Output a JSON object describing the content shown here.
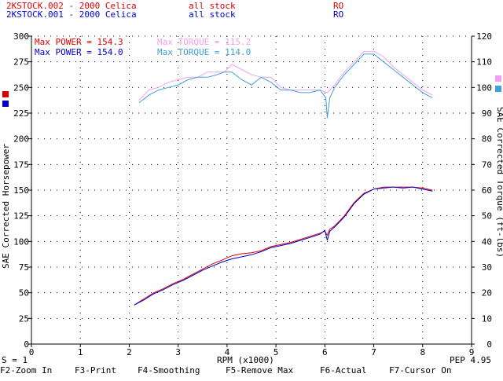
{
  "header": {
    "runs": [
      {
        "file": "2KSTOCK.002 - 2000 Celica",
        "notes": "all stock",
        "code": "RO",
        "color": "#e00000"
      },
      {
        "file": "2KSTOCK.001 - 2000 Celica",
        "notes": "all stock",
        "code": "RO",
        "color": "#0000d0"
      }
    ]
  },
  "colors": {
    "power_run2": "#e00000",
    "power_run1": "#0000d0",
    "torque_run2": "#f0a0f0",
    "torque_run1": "#40a0d8",
    "axis": "#000000",
    "grid_dots": "#000000"
  },
  "legend": {
    "max_power_run2": "Max POWER = 154.3",
    "max_power_run1": "Max POWER = 154.0",
    "max_torque_run2": "Max TORQUE = 115.2",
    "max_torque_run1": "Max TORQUE = 114.0"
  },
  "status": {
    "scale": "S = 1",
    "version": "PEP 4.95"
  },
  "function_keys": [
    "F2-Zoom In",
    "F3-Print",
    "F4-Smoothing",
    "F5-Remove Max",
    "F6-Actual",
    "F7-Cursor On"
  ],
  "chart_data": {
    "type": "line",
    "xlabel": "RPM (x1000)",
    "ylabel": "SAE Corrected Horsepower",
    "ylabel_right": "SAE Corrected Torque (ft-lbs)",
    "xlim": [
      0,
      9
    ],
    "ylim": [
      0,
      300
    ],
    "ylim_right": [
      0,
      120
    ],
    "x_ticks": [
      "0",
      "1",
      "2",
      "3",
      "4",
      "5",
      "6",
      "7",
      "8",
      "9"
    ],
    "y_ticks": [
      "0",
      "25",
      "50",
      "75",
      "100",
      "125",
      "150",
      "175",
      "200",
      "225",
      "250",
      "275",
      "300"
    ],
    "y_ticks_right": [
      "0",
      "10",
      "20",
      "30",
      "40",
      "50",
      "60",
      "70",
      "80",
      "90",
      "100",
      "110",
      "120"
    ],
    "grid": "dotted",
    "series": [
      {
        "name": "2KSTOCK.002 power",
        "axis": "left",
        "x": [
          2.1,
          2.3,
          2.5,
          2.7,
          2.9,
          3.1,
          3.3,
          3.5,
          3.7,
          3.9,
          4.1,
          4.3,
          4.5,
          4.7,
          4.9,
          5.1,
          5.3,
          5.5,
          5.7,
          5.9,
          6.0,
          6.05,
          6.1,
          6.2,
          6.4,
          6.6,
          6.8,
          7.0,
          7.2,
          7.4,
          7.6,
          7.8,
          8.0,
          8.2
        ],
        "values": [
          38,
          44,
          50,
          54,
          59,
          63,
          68,
          73,
          78,
          82,
          86,
          88,
          89,
          91,
          95,
          97,
          99,
          102,
          105,
          108,
          110,
          106,
          112,
          115,
          125,
          138,
          147,
          151,
          153,
          153,
          153,
          153,
          152,
          150
        ]
      },
      {
        "name": "2KSTOCK.001 power",
        "axis": "left",
        "x": [
          2.1,
          2.3,
          2.5,
          2.7,
          2.9,
          3.1,
          3.3,
          3.5,
          3.7,
          3.9,
          4.1,
          4.3,
          4.5,
          4.7,
          4.9,
          5.1,
          5.3,
          5.5,
          5.7,
          5.9,
          6.0,
          6.05,
          6.1,
          6.2,
          6.4,
          6.6,
          6.8,
          7.0,
          7.2,
          7.4,
          7.6,
          7.8,
          8.0,
          8.2
        ],
        "values": [
          38,
          43,
          49,
          53,
          58,
          62,
          67,
          72,
          76,
          80,
          83,
          85,
          87,
          90,
          94,
          96,
          98,
          101,
          104,
          107,
          111,
          101,
          110,
          114,
          124,
          137,
          146,
          151,
          152,
          153,
          152,
          153,
          151,
          149
        ]
      },
      {
        "name": "2KSTOCK.002 torque",
        "axis": "right",
        "x": [
          2.2,
          2.4,
          2.6,
          2.8,
          3.0,
          3.2,
          3.4,
          3.6,
          3.8,
          3.95,
          4.1,
          4.3,
          4.5,
          4.7,
          4.9,
          5.1,
          5.3,
          5.5,
          5.7,
          5.9,
          6.05,
          6.2,
          6.4,
          6.6,
          6.8,
          7.0,
          7.2,
          7.4,
          7.6,
          7.8,
          8.0,
          8.2
        ],
        "values": [
          95,
          99,
          100,
          102,
          103,
          104,
          104,
          106,
          106,
          106,
          109,
          107,
          105,
          104,
          104,
          100,
          99,
          99,
          99,
          99,
          98,
          101,
          106,
          110,
          114,
          114,
          112,
          108,
          105,
          102,
          99,
          97
        ]
      },
      {
        "name": "2KSTOCK.001 torque",
        "axis": "right",
        "x": [
          2.2,
          2.4,
          2.6,
          2.8,
          3.0,
          3.2,
          3.4,
          3.6,
          3.8,
          3.95,
          4.1,
          4.3,
          4.5,
          4.7,
          4.9,
          5.1,
          5.3,
          5.5,
          5.7,
          5.9,
          6.02,
          6.05,
          6.1,
          6.2,
          6.4,
          6.6,
          6.8,
          7.0,
          7.2,
          7.4,
          7.6,
          7.8,
          8.0,
          8.2
        ],
        "values": [
          94,
          97,
          99,
          100,
          101,
          103,
          104,
          104,
          105,
          106,
          106,
          103,
          101,
          104,
          102,
          99,
          99,
          98,
          98,
          99,
          96,
          88,
          96,
          100,
          105,
          109,
          113,
          113,
          110,
          107,
          104,
          101,
          98,
          96
        ]
      }
    ]
  }
}
